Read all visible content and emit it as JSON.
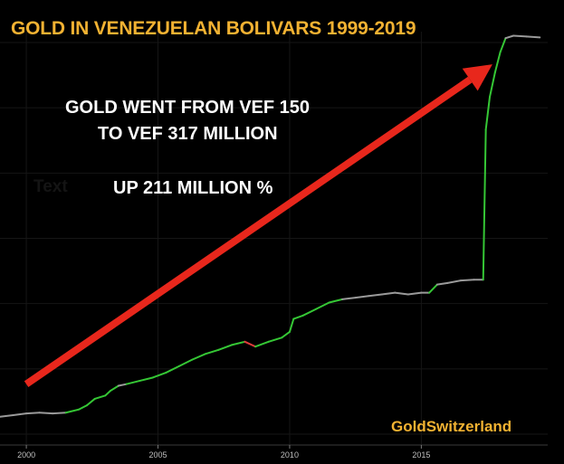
{
  "chart_data": {
    "type": "line",
    "title": "GOLD IN VENEZUELAN BOLIVARS 1999-2019",
    "xlabel": "",
    "ylabel": "",
    "x_ticks": [
      2000,
      2005,
      2010,
      2015
    ],
    "xlim": [
      1999,
      2019.8
    ],
    "y_axis_labels_shown": false,
    "grid": true,
    "legend": "none",
    "colors": {
      "line": "#9a9a9a",
      "up": "#35c735",
      "down": "#e03b3b",
      "arrow": "#e8271c",
      "title": "#f2b232"
    },
    "series": [
      {
        "points": [
          [
            1999.0,
            8
          ],
          [
            1999.5,
            10
          ],
          [
            2000.0,
            12
          ],
          [
            2000.5,
            13
          ],
          [
            2001.0,
            12
          ],
          [
            2001.5,
            13
          ],
          [
            2002.0,
            17
          ],
          [
            2002.3,
            22
          ],
          [
            2002.6,
            30
          ],
          [
            2003.0,
            34
          ],
          [
            2003.2,
            40
          ],
          [
            2003.5,
            46
          ],
          [
            2003.8,
            48
          ],
          [
            2004.3,
            52
          ],
          [
            2004.8,
            56
          ],
          [
            2005.3,
            62
          ],
          [
            2005.8,
            70
          ],
          [
            2006.3,
            78
          ],
          [
            2006.8,
            85
          ],
          [
            2007.3,
            90
          ],
          [
            2007.8,
            96
          ],
          [
            2008.3,
            100
          ],
          [
            2008.7,
            94
          ],
          [
            2009.2,
            100
          ],
          [
            2009.7,
            105
          ],
          [
            2010.0,
            112
          ],
          [
            2010.15,
            128
          ],
          [
            2010.5,
            132
          ],
          [
            2011.0,
            140
          ],
          [
            2011.5,
            148
          ],
          [
            2012.0,
            152
          ],
          [
            2012.5,
            154
          ],
          [
            2013.0,
            156
          ],
          [
            2013.5,
            158
          ],
          [
            2014.0,
            160
          ],
          [
            2014.5,
            158
          ],
          [
            2015.0,
            160
          ],
          [
            2015.3,
            160
          ],
          [
            2015.6,
            170
          ],
          [
            2016.0,
            172
          ],
          [
            2016.5,
            175
          ],
          [
            2017.0,
            176
          ],
          [
            2017.35,
            176
          ],
          [
            2017.45,
            360
          ],
          [
            2017.6,
            400
          ],
          [
            2017.8,
            430
          ],
          [
            2018.0,
            455
          ],
          [
            2018.2,
            472
          ],
          [
            2018.5,
            475
          ],
          [
            2019.0,
            474
          ],
          [
            2019.5,
            473
          ]
        ]
      }
    ],
    "annotations": [
      "GOLD WENT FROM VEF 150",
      "TO  VEF 317 MILLION",
      "UP 211 MILLION %"
    ],
    "arrow": {
      "from": [
        2000.0,
        48
      ],
      "to": [
        2017.7,
        440
      ]
    }
  },
  "ghost_text": "Text",
  "brand": "GoldSwitzerland"
}
